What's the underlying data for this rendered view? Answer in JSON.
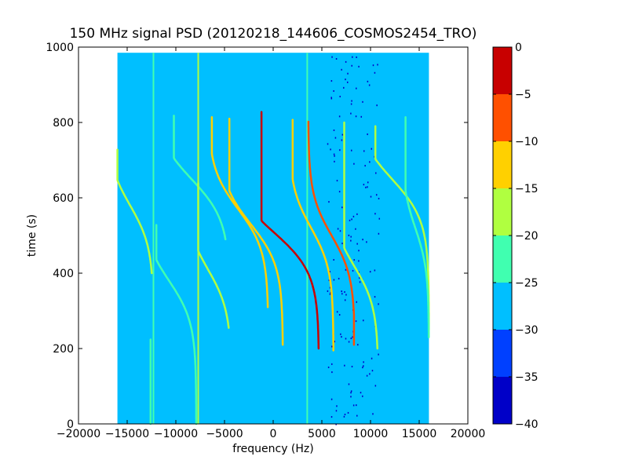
{
  "chart_data": {
    "type": "heatmap",
    "title": "150 MHz signal PSD (20120218_144606_COSMOS2454_TRO)",
    "xlabel": "frequency (Hz)",
    "ylabel": "time (s)",
    "xlim": [
      -20000,
      20000
    ],
    "ylim": [
      0,
      1000
    ],
    "x_ticks": [
      -20000,
      -15000,
      -10000,
      -5000,
      0,
      5000,
      10000,
      15000,
      20000
    ],
    "y_ticks": [
      0,
      200,
      400,
      600,
      800,
      1000
    ],
    "data_extent": {
      "x": [
        -16000,
        16000
      ],
      "y": [
        0,
        985
      ]
    },
    "colorbar": {
      "range": [
        -40,
        0
      ],
      "levels": [
        {
          "from": -40,
          "to": -35,
          "color": "#0000c8"
        },
        {
          "from": -35,
          "to": -30,
          "color": "#0040ff"
        },
        {
          "from": -30,
          "to": -25,
          "color": "#00bfff"
        },
        {
          "from": -25,
          "to": -20,
          "color": "#40ffb0"
        },
        {
          "from": -20,
          "to": -15,
          "color": "#b0ff40"
        },
        {
          "from": -15,
          "to": -10,
          "color": "#ffd000"
        },
        {
          "from": -10,
          "to": -5,
          "color": "#ff5000"
        },
        {
          "from": -5,
          "to": 0,
          "color": "#c80000"
        }
      ],
      "ticks": [
        0,
        -5,
        -10,
        -15,
        -20,
        -25,
        -30,
        -35,
        -40
      ]
    },
    "background_level": -27,
    "vertical_lines": [
      {
        "freq": -12300,
        "level": -22
      },
      {
        "freq": -7700,
        "level": -17
      },
      {
        "freq": 3500,
        "level": -23
      }
    ],
    "traces": [
      {
        "center_freq": -14700,
        "center_time": 580,
        "level": -17,
        "freq_span": [
          -16000,
          -12300
        ],
        "time_span": [
          400,
          730
        ]
      },
      {
        "center_freq": -12300,
        "center_time": 310,
        "level": -22,
        "freq_span": [
          -16000,
          -12600
        ],
        "time_span": [
          0,
          225
        ]
      },
      {
        "center_freq": -10700,
        "center_time": 380,
        "level": -20,
        "freq_span": [
          -12000,
          -7900
        ],
        "time_span": [
          0,
          530
        ]
      },
      {
        "center_freq": -8400,
        "center_time": 650,
        "level": -21,
        "freq_span": [
          -10200,
          -4500
        ],
        "time_span": [
          490,
          820
        ]
      },
      {
        "center_freq": -6700,
        "center_time": 410,
        "level": -17,
        "freq_span": [
          -7700,
          -4300
        ],
        "time_span": [
          255,
          640
        ]
      },
      {
        "center_freq": -3600,
        "center_time": 570,
        "level": -11,
        "freq_span": [
          -6300,
          -500
        ],
        "time_span": [
          310,
          815
        ]
      },
      {
        "center_freq": -2300,
        "center_time": 530,
        "level": -13,
        "freq_span": [
          -4500,
          1000
        ],
        "time_span": [
          210,
          810
        ]
      },
      {
        "center_freq": 0,
        "center_time": 510,
        "level": -4,
        "freq_span": [
          -1200,
          4700
        ],
        "time_span": [
          200,
          830
        ]
      },
      {
        "center_freq": 3900,
        "center_time": 520,
        "level": -10,
        "freq_span": [
          2000,
          6200
        ],
        "time_span": [
          195,
          810
        ]
      },
      {
        "center_freq": 6000,
        "center_time": 500,
        "level": -8,
        "freq_span": [
          3600,
          8300
        ],
        "time_span": [
          210,
          805
        ]
      },
      {
        "center_freq": 8300,
        "center_time": 420,
        "level": -19,
        "freq_span": [
          7300,
          10800
        ],
        "time_span": [
          200,
          800
        ]
      },
      {
        "center_freq": 12200,
        "center_time": 650,
        "level": -19,
        "freq_span": [
          10500,
          16000
        ],
        "time_span": [
          250,
          790
        ]
      },
      {
        "center_freq": 14600,
        "center_time": 520,
        "level": -21,
        "freq_span": [
          13600,
          16000
        ],
        "time_span": [
          230,
          815
        ]
      }
    ],
    "speckle_region": {
      "freq": [
        5500,
        11000
      ],
      "time": [
        0,
        985
      ],
      "level": -35
    }
  }
}
